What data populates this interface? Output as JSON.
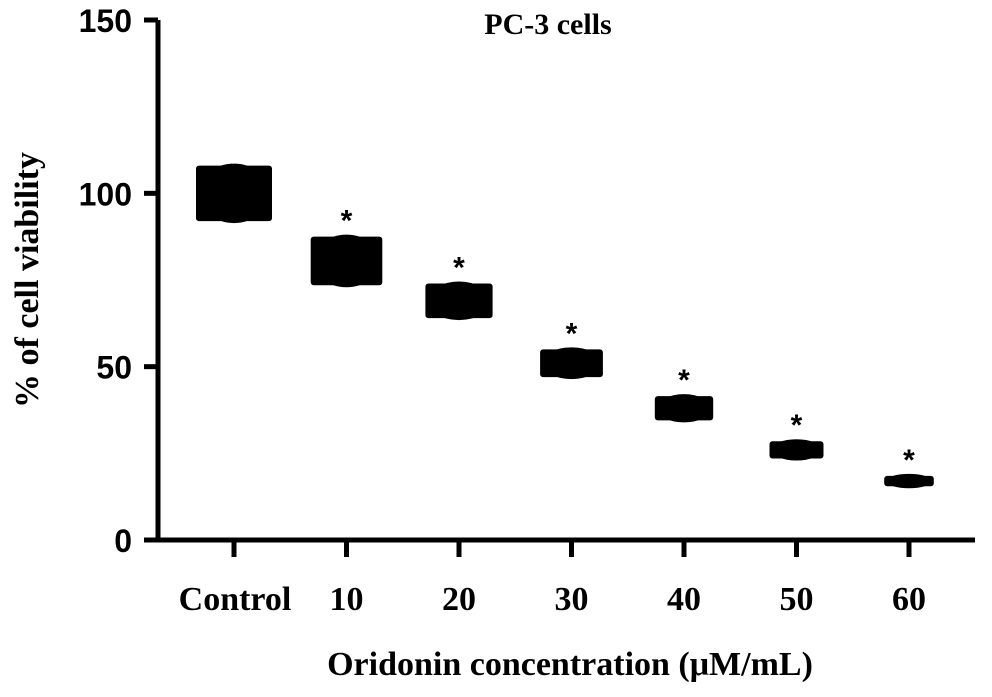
{
  "chart_data": {
    "type": "scatter",
    "title": "PC-3 cells",
    "xlabel": "Oridonin concentration (μM/mL)",
    "ylabel": "% of cell viability",
    "categories": [
      "Control",
      "10",
      "20",
      "30",
      "40",
      "50",
      "60"
    ],
    "values": [
      100,
      80.5,
      69,
      51,
      38,
      26,
      17
    ],
    "errors": [
      8,
      7,
      5,
      4,
      3.5,
      2.5,
      1.5
    ],
    "significance": [
      "",
      "*",
      "*",
      "*",
      "*",
      "*",
      "*"
    ],
    "ylim": [
      0,
      150
    ],
    "yticks": [
      "0",
      "50",
      "100",
      "150"
    ],
    "ytick_values": [
      0,
      50,
      100,
      150
    ],
    "grid": false,
    "marker_color": "#000000"
  }
}
